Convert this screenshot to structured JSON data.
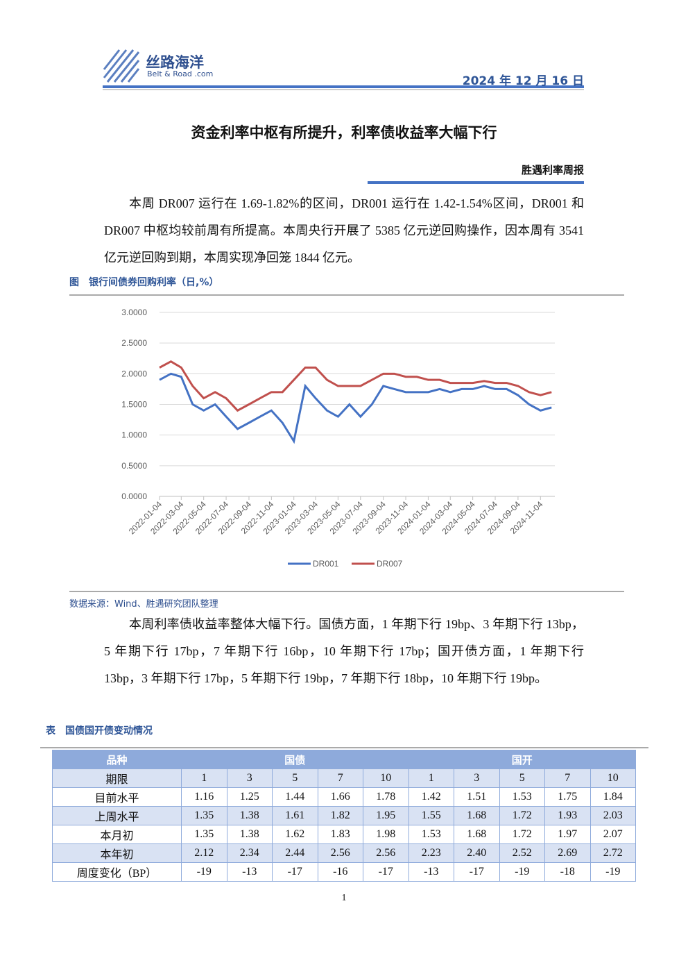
{
  "header": {
    "logo": "丝路海洋",
    "logo_sub": "Belt & Road .com",
    "date": "2024 年 12 月 16 日"
  },
  "title": "资金利率中枢有所提升，利率债收益率大幅下行",
  "subtitle": "胜遇利率周报",
  "paragraphs": [
    "本周 DR007 运行在 1.69-1.82%的区间，DR001 运行在 1.42-1.54%区间，DR001 和 DR007 中枢均较前周有所提高。本周央行开展了 5385 亿元逆回购操作，因本周有 3541 亿元逆回购到期，本周实现净回笼 1844 亿元。",
    "本周利率债收益率整体大幅下行。国债方面，1 年期下行 19bp、3 年期下行 13bp，5 年期下行 17bp，7 年期下行 16bp，10 年期下行 17bp；国开债方面，1 年期下行 13bp，3 年期下行 17bp，5 年期下行 19bp，7 年期下行 18bp，10 年期下行 19bp。"
  ],
  "figure_caption": "图　银行间债券回购利率（日,%）",
  "chart_data": {
    "type": "line",
    "x": [
      "2022-01-04",
      "2022-02-04",
      "2022-03-04",
      "2022-04-04",
      "2022-05-04",
      "2022-06-04",
      "2022-07-04",
      "2022-08-04",
      "2022-09-04",
      "2022-10-04",
      "2022-11-04",
      "2022-12-04",
      "2023-01-04",
      "2023-02-04",
      "2023-03-04",
      "2023-04-04",
      "2023-05-04",
      "2023-06-04",
      "2023-07-04",
      "2023-08-04",
      "2023-09-04",
      "2023-10-04",
      "2023-11-04",
      "2023-12-04",
      "2024-01-04",
      "2024-02-04",
      "2024-03-04",
      "2024-04-04",
      "2024-05-04",
      "2024-06-04",
      "2024-07-04",
      "2024-08-04",
      "2024-09-04",
      "2024-10-04",
      "2024-11-04",
      "2024-12-04"
    ],
    "series": [
      {
        "name": "DR001",
        "color": "#4472c4",
        "values": [
          1.9,
          2.0,
          1.95,
          1.5,
          1.4,
          1.5,
          1.3,
          1.1,
          1.2,
          1.3,
          1.4,
          1.2,
          0.9,
          1.8,
          1.6,
          1.4,
          1.3,
          1.5,
          1.3,
          1.5,
          1.8,
          1.75,
          1.7,
          1.7,
          1.7,
          1.75,
          1.7,
          1.75,
          1.75,
          1.8,
          1.75,
          1.75,
          1.65,
          1.5,
          1.4,
          1.45
        ]
      },
      {
        "name": "DR007",
        "color": "#c0504d",
        "values": [
          2.1,
          2.2,
          2.1,
          1.8,
          1.6,
          1.7,
          1.6,
          1.4,
          1.5,
          1.6,
          1.7,
          1.7,
          1.9,
          2.1,
          2.1,
          1.9,
          1.8,
          1.8,
          1.8,
          1.9,
          2.0,
          2.0,
          1.95,
          1.95,
          1.9,
          1.9,
          1.85,
          1.85,
          1.85,
          1.88,
          1.85,
          1.85,
          1.8,
          1.7,
          1.65,
          1.7
        ]
      }
    ],
    "xlim": [
      "2022-01-04",
      "2024-12-13"
    ],
    "xticks": [
      "2022-01-04",
      "2022-03-04",
      "2022-05-04",
      "2022-07-04",
      "2022-09-04",
      "2022-11-04",
      "2023-01-04",
      "2023-03-04",
      "2023-05-04",
      "2023-07-04",
      "2023-09-04",
      "2023-11-04",
      "2024-01-04",
      "2024-03-04",
      "2024-05-04",
      "2024-07-04",
      "2024-09-04",
      "2024-11-04"
    ],
    "ylim": [
      0,
      3
    ],
    "yticks": [
      {
        "value": 0,
        "label": "0.0000"
      },
      {
        "value": 0.5,
        "label": "0.5000"
      },
      {
        "value": 1,
        "label": "1.0000"
      },
      {
        "value": 1.5,
        "label": "1.5000"
      },
      {
        "value": 2,
        "label": "2.0000"
      },
      {
        "value": 2.5,
        "label": "2.5000"
      },
      {
        "value": 3,
        "label": "3.0000"
      }
    ],
    "grid": true,
    "legend": "bottom"
  },
  "source": "数据来源：Wind、胜遇研究团队整理",
  "table_caption": "表　国债国开债变动情况",
  "table": {
    "header": [
      "品种",
      "国债",
      "国开"
    ],
    "rows": [
      [
        "期限",
        "1",
        "3",
        "5",
        "7",
        "10",
        "1",
        "3",
        "5",
        "7",
        "10"
      ],
      [
        "目前水平",
        "1.16",
        "1.25",
        "1.44",
        "1.66",
        "1.78",
        "1.42",
        "1.51",
        "1.53",
        "1.75",
        "1.84"
      ],
      [
        "上周水平",
        "1.35",
        "1.38",
        "1.61",
        "1.82",
        "1.95",
        "1.55",
        "1.68",
        "1.72",
        "1.93",
        "2.03"
      ],
      [
        "本月初",
        "1.35",
        "1.38",
        "1.62",
        "1.83",
        "1.98",
        "1.53",
        "1.68",
        "1.72",
        "1.97",
        "2.07"
      ],
      [
        "本年初",
        "2.12",
        "2.34",
        "2.44",
        "2.56",
        "2.56",
        "2.23",
        "2.40",
        "2.52",
        "2.69",
        "2.72"
      ],
      [
        "周度变化（BP）",
        "-19",
        "-13",
        "-17",
        "-16",
        "-17",
        "-13",
        "-17",
        "-19",
        "-18",
        "-19"
      ]
    ]
  },
  "page_number": "1"
}
